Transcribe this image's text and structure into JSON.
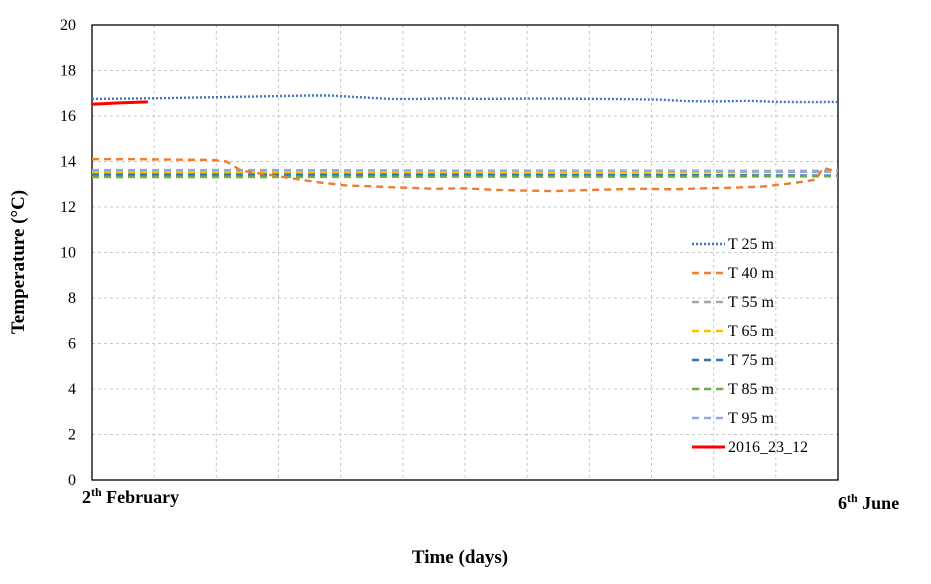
{
  "chart_data": {
    "type": "line",
    "title": "",
    "xlabel": "Time (days)",
    "ylabel": "Temperature (°C)",
    "x_start_label": {
      "base": "2",
      "sup": "th",
      "rest": " February"
    },
    "x_end_label": {
      "base": "6",
      "sup": "th",
      "rest": " June"
    },
    "x_range": [
      "2 February",
      "6 June"
    ],
    "ylim": [
      0,
      20
    ],
    "y_ticks": [
      "0",
      "2",
      "4",
      "6",
      "8",
      "10",
      "12",
      "14",
      "16",
      "18",
      "20"
    ],
    "grid": true,
    "legend_position": "right",
    "series": [
      {
        "name": "T 25 m",
        "color": "#4472C4",
        "style": "dotted",
        "x": [
          0.0,
          0.08,
          0.16,
          0.24,
          0.29,
          0.32,
          0.36,
          0.4,
          0.44,
          0.48,
          0.52,
          0.56,
          0.6,
          0.64,
          0.68,
          0.72,
          0.76,
          0.8,
          0.84,
          0.88,
          0.92,
          0.96,
          1.0
        ],
        "y": [
          16.75,
          16.78,
          16.82,
          16.87,
          16.9,
          16.9,
          16.82,
          16.75,
          16.75,
          16.78,
          16.75,
          16.76,
          16.77,
          16.76,
          16.75,
          16.74,
          16.72,
          16.65,
          16.64,
          16.67,
          16.62,
          16.61,
          16.62
        ]
      },
      {
        "name": "T 40 m",
        "color": "#ED7D31",
        "style": "dashed",
        "x": [
          0.0,
          0.06,
          0.12,
          0.16,
          0.18,
          0.2,
          0.23,
          0.26,
          0.3,
          0.34,
          0.38,
          0.42,
          0.46,
          0.5,
          0.54,
          0.58,
          0.62,
          0.66,
          0.7,
          0.74,
          0.78,
          0.82,
          0.86,
          0.9,
          0.94,
          0.97,
          0.98,
          1.0
        ],
        "y": [
          14.1,
          14.1,
          14.08,
          14.07,
          14.0,
          13.6,
          13.45,
          13.3,
          13.1,
          12.95,
          12.9,
          12.85,
          12.8,
          12.82,
          12.75,
          12.72,
          12.7,
          12.74,
          12.78,
          12.8,
          12.78,
          12.82,
          12.85,
          12.9,
          13.05,
          13.2,
          13.72,
          13.55
        ]
      },
      {
        "name": "T 55 m",
        "color": "#A5A5A5",
        "style": "dashed",
        "x": [
          0.0,
          0.25,
          0.5,
          0.75,
          1.0
        ],
        "y": [
          13.55,
          13.55,
          13.55,
          13.52,
          13.55
        ]
      },
      {
        "name": "T 65 m",
        "color": "#FFC000",
        "style": "dashed",
        "x": [
          0.0,
          0.25,
          0.5,
          0.75,
          1.0
        ],
        "y": [
          13.5,
          13.52,
          13.52,
          13.55,
          13.6
        ]
      },
      {
        "name": "T 75 m",
        "color": "#2E75B6",
        "style": "dashed",
        "x": [
          0.0,
          0.25,
          0.5,
          0.75,
          1.0
        ],
        "y": [
          13.42,
          13.42,
          13.42,
          13.4,
          13.38
        ]
      },
      {
        "name": "T 85 m",
        "color": "#70AD47",
        "style": "dashed",
        "x": [
          0.0,
          0.25,
          0.5,
          0.75,
          1.0
        ],
        "y": [
          13.32,
          13.32,
          13.33,
          13.33,
          13.35
        ]
      },
      {
        "name": "T 95 m",
        "color": "#8FAADC",
        "style": "dashed",
        "x": [
          0.0,
          0.25,
          0.5,
          0.75,
          1.0
        ],
        "y": [
          13.62,
          13.62,
          13.6,
          13.6,
          13.58
        ]
      },
      {
        "name": "2016_23_12",
        "color": "#FF0000",
        "style": "solid",
        "x": [
          0.0,
          0.02,
          0.04,
          0.06,
          0.075
        ],
        "y": [
          16.52,
          16.55,
          16.58,
          16.6,
          16.62
        ]
      }
    ]
  }
}
